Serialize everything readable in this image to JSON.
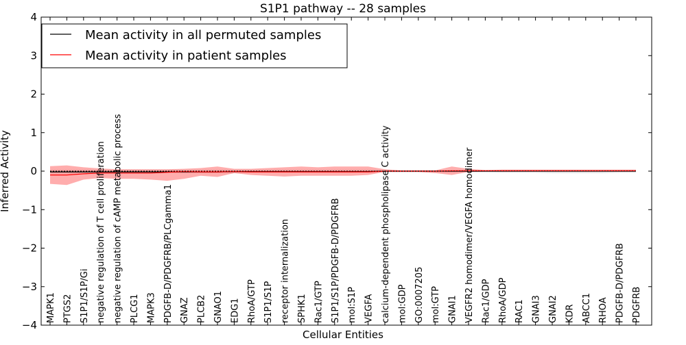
{
  "chart_data": {
    "type": "line",
    "title": "S1P1 pathway -- 28 samples",
    "xlabel": "Cellular Entities",
    "ylabel": "Inferred Activity",
    "ylim": [
      -4,
      4
    ],
    "yticks": [
      {
        "value": 4,
        "label": "4"
      },
      {
        "value": 3,
        "label": "3"
      },
      {
        "value": 2,
        "label": "2"
      },
      {
        "value": 1,
        "label": "1"
      },
      {
        "value": 0,
        "label": "0"
      },
      {
        "value": -1,
        "label": "−1"
      },
      {
        "value": -2,
        "label": "−2"
      },
      {
        "value": -3,
        "label": "−3"
      },
      {
        "value": -4,
        "label": "−4"
      }
    ],
    "legend_position": "top-left",
    "categories": [
      "MAPK1",
      "PTGS2",
      "S1P1/S1P/Gi",
      "negative regulation of T cell proliferation",
      "negative regulation of cAMP metabolic process",
      "PLCG1",
      "MAPK3",
      "PDGFB-D/PDGFRB/PLCgamma1",
      "GNAZ",
      "PLCB2",
      "GNAO1",
      "EDG1",
      "RhoA/GTP",
      "S1P1/S1P",
      "receptor internalization",
      "SPHK1",
      "Rac1/GTP",
      "S1P1/S1P/PDGFB-D/PDGFRB",
      "mol:S1P",
      "VEGFA",
      "calcium-dependent phospholipase C activity",
      "mol:GDP",
      "GO:0007205",
      "mol:GTP",
      "GNAI1",
      "VEGFR2 homodimer/VEGFA homodimer",
      "Rac1/GDP",
      "RhoA/GDP",
      "RAC1",
      "GNAI3",
      "GNAI2",
      "KDR",
      "ABCC1",
      "RHOA",
      "PDGFB-D/PDGFRB",
      "PDGFRB"
    ],
    "series": [
      {
        "name": "Mean activity in all permuted samples",
        "color": "#000000",
        "values": [
          -0.02,
          -0.02,
          -0.02,
          -0.02,
          -0.02,
          -0.02,
          -0.02,
          -0.02,
          -0.02,
          -0.02,
          -0.02,
          -0.01,
          -0.01,
          -0.01,
          -0.01,
          -0.01,
          -0.01,
          -0.01,
          -0.01,
          -0.01,
          0.0,
          0.0,
          0.0,
          0.0,
          0.0,
          0.0,
          0.0,
          0.0,
          0.0,
          0.0,
          0.0,
          0.0,
          0.0,
          0.0,
          0.0,
          0.0
        ],
        "band_low": [
          -0.06,
          -0.06,
          -0.06,
          -0.06,
          -0.06,
          -0.06,
          -0.06,
          -0.05,
          -0.05,
          -0.05,
          -0.05,
          -0.05,
          -0.04,
          -0.04,
          -0.04,
          -0.04,
          -0.04,
          -0.04,
          -0.04,
          -0.03,
          -0.03,
          -0.03,
          -0.03,
          -0.03,
          -0.03,
          -0.03,
          -0.03,
          -0.04,
          -0.04,
          -0.04,
          -0.05,
          -0.05,
          -0.05,
          -0.05,
          -0.04,
          -0.04
        ],
        "band_high": [
          0.03,
          0.03,
          0.03,
          0.03,
          0.03,
          0.03,
          0.03,
          0.03,
          0.03,
          0.03,
          0.03,
          0.03,
          0.03,
          0.03,
          0.03,
          0.03,
          0.03,
          0.03,
          0.03,
          0.03,
          0.02,
          0.02,
          0.02,
          0.02,
          0.02,
          0.02,
          0.02,
          0.02,
          0.02,
          0.02,
          0.02,
          0.02,
          0.02,
          0.02,
          0.02,
          0.02
        ]
      },
      {
        "name": "Mean activity in patient samples",
        "color": "#ff0000",
        "values": [
          -0.1,
          -0.1,
          -0.07,
          -0.05,
          -0.05,
          -0.05,
          -0.05,
          -0.03,
          -0.01,
          -0.02,
          -0.02,
          -0.01,
          -0.02,
          -0.02,
          -0.02,
          -0.02,
          -0.02,
          -0.02,
          -0.02,
          -0.02,
          0.0,
          0.0,
          0.0,
          0.0,
          0.01,
          0.01,
          0.01,
          0.01,
          0.01,
          0.01,
          0.01,
          0.01,
          0.01,
          0.01,
          0.01,
          0.01
        ],
        "band_low": [
          -0.33,
          -0.36,
          -0.22,
          -0.18,
          -0.2,
          -0.2,
          -0.22,
          -0.25,
          -0.2,
          -0.12,
          -0.15,
          -0.05,
          -0.1,
          -0.12,
          -0.14,
          -0.12,
          -0.12,
          -0.12,
          -0.12,
          -0.1,
          -0.02,
          -0.02,
          -0.02,
          -0.05,
          -0.1,
          -0.02,
          -0.01,
          -0.01,
          -0.01,
          -0.01,
          -0.01,
          -0.01,
          -0.01,
          -0.01,
          -0.01,
          -0.01
        ],
        "band_high": [
          0.13,
          0.15,
          0.1,
          0.07,
          0.05,
          0.05,
          0.05,
          0.05,
          0.06,
          0.08,
          0.12,
          0.06,
          0.06,
          0.08,
          0.1,
          0.12,
          0.1,
          0.12,
          0.12,
          0.12,
          0.05,
          0.02,
          0.02,
          0.02,
          0.12,
          0.06,
          0.03,
          0.04,
          0.04,
          0.04,
          0.04,
          0.04,
          0.04,
          0.04,
          0.04,
          0.04
        ]
      }
    ]
  }
}
